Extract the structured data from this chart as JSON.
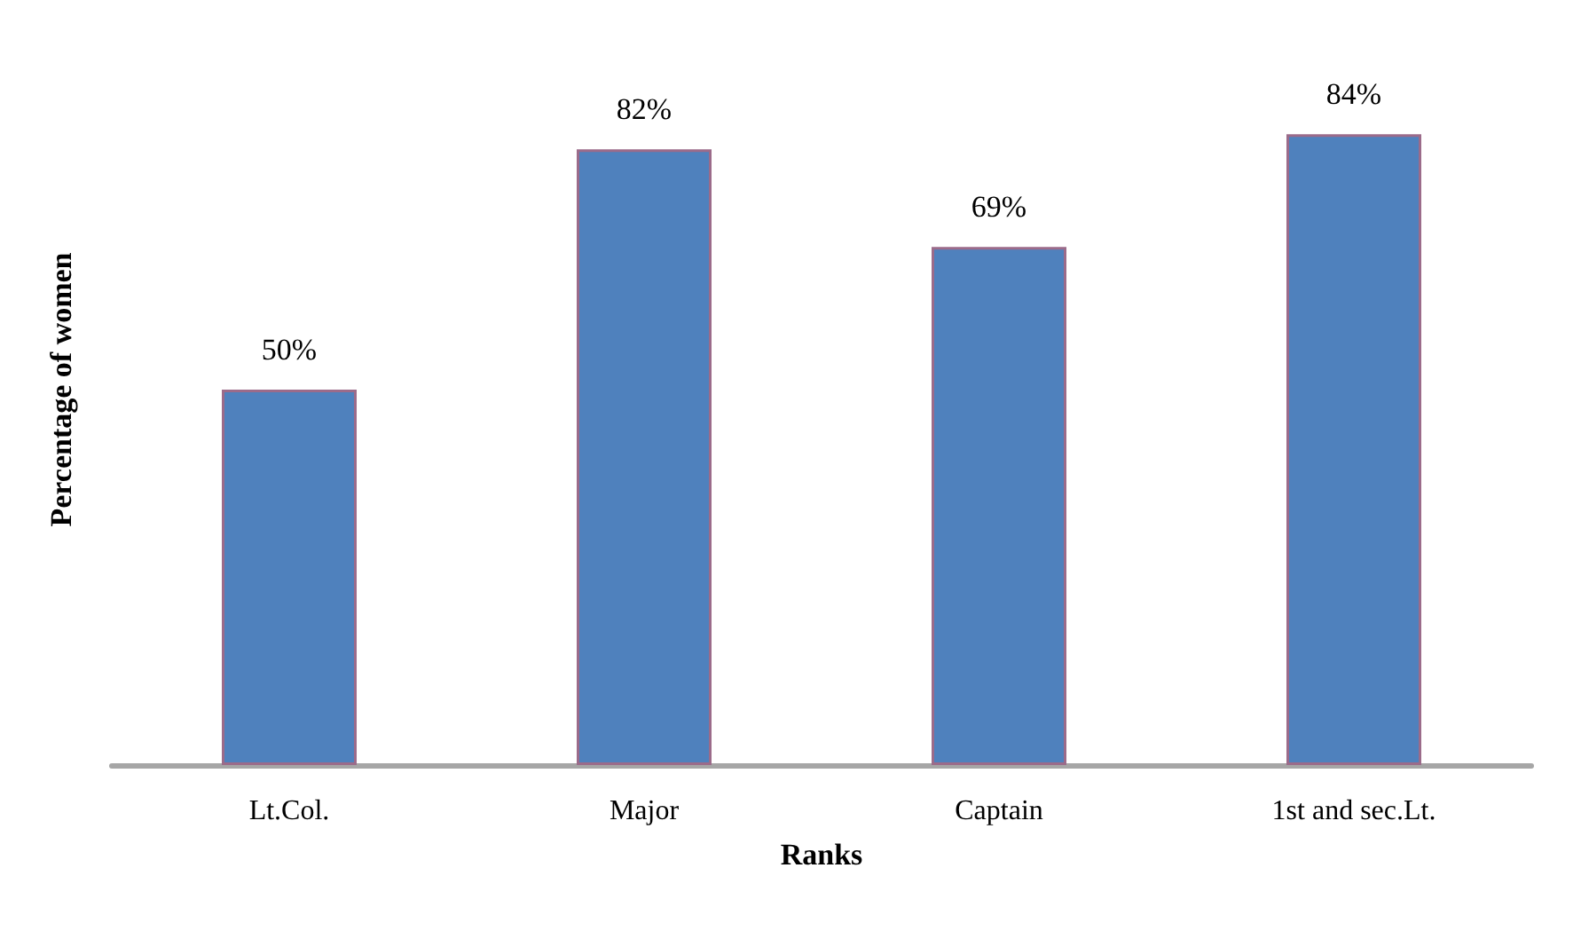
{
  "chart_data": {
    "type": "bar",
    "xlabel": "Ranks",
    "ylabel": "Percentage of women",
    "categories": [
      "Lt.Col.",
      "Major",
      "Captain",
      "1st and sec.Lt."
    ],
    "values": [
      50,
      82,
      69,
      84
    ],
    "color": "#4f81bd",
    "value_labels": [
      "50%",
      "82%",
      "69%",
      "84%"
    ],
    "tick_labels": "x",
    "grid": false
  }
}
